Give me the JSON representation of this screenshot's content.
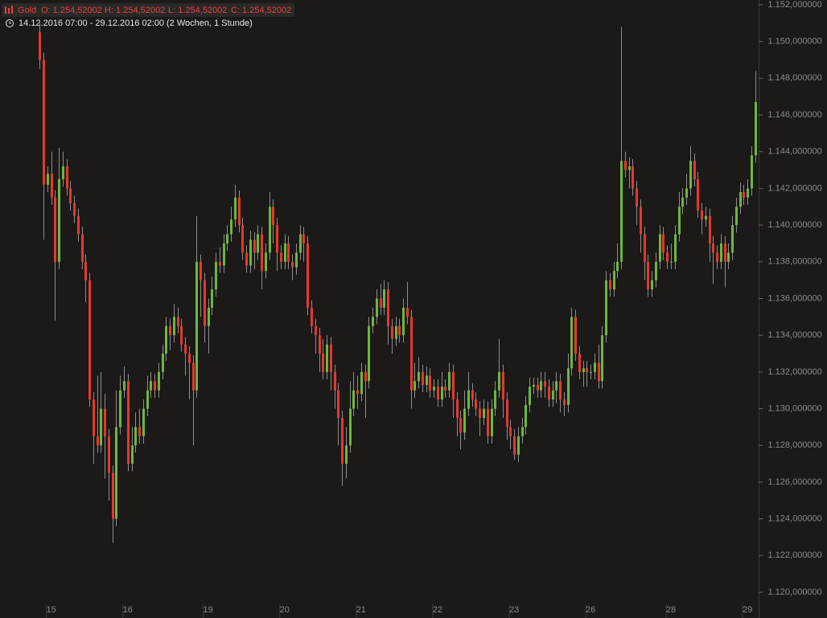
{
  "chart_data": {
    "type": "candlestick",
    "title": "Gold",
    "quote": {
      "open": "O: 1.254,52002",
      "high": "H: 1.254,52002",
      "low": "L: 1.254,52002",
      "close": "C: 1.254,52002"
    },
    "period": "14.12.2016 07:00 - 29.12.2016 02:00",
    "span": "(2 Wochen, 1 Stunde)",
    "up_color": "#6cb83a",
    "down_color": "#e5382e",
    "wick_color": "#8c8c8c",
    "categories": [
      null,
      null,
      null,
      "15",
      null,
      null,
      null,
      null,
      null,
      null,
      null,
      null,
      null,
      null,
      null,
      null,
      null,
      null,
      null,
      null,
      null,
      null,
      null,
      "16",
      null,
      null,
      null,
      null,
      null,
      null,
      null,
      null,
      null,
      null,
      null,
      null,
      null,
      null,
      null,
      null,
      null,
      null,
      null,
      null,
      "19",
      null,
      null,
      null,
      null,
      null,
      null,
      null,
      null,
      null,
      null,
      null,
      null,
      null,
      null,
      null,
      null,
      null,
      null,
      null,
      "20",
      null,
      null,
      null,
      null,
      null,
      null,
      null,
      null,
      null,
      null,
      null,
      null,
      null,
      null,
      null,
      null,
      null,
      null,
      null,
      "21",
      null,
      null,
      null,
      null,
      null,
      null,
      null,
      null,
      null,
      null,
      null,
      null,
      null,
      null,
      null,
      null,
      null,
      null,
      null,
      "22",
      null,
      null,
      null,
      null,
      null,
      null,
      null,
      null,
      null,
      null,
      null,
      null,
      null,
      null,
      null,
      null,
      null,
      null,
      null,
      "23",
      null,
      null,
      null,
      null,
      null,
      null,
      null,
      null,
      null,
      null,
      null,
      null,
      null,
      null,
      null,
      null,
      null,
      null,
      null,
      "26",
      null,
      null,
      null,
      null,
      null,
      null,
      null,
      null,
      null,
      null,
      null,
      null,
      null,
      null,
      null,
      null,
      null,
      null,
      null,
      null,
      "28",
      null,
      null,
      null,
      null,
      null,
      null,
      null,
      null,
      null,
      null,
      null,
      null,
      null,
      null,
      null,
      null,
      null,
      null,
      null,
      "29",
      null,
      null
    ],
    "open": [
      1150.5,
      1149.0,
      1142.2,
      1142.8,
      1141.5,
      1138.0,
      1142.5,
      1143.2,
      1142.0,
      1141.2,
      1140.5,
      1139.5,
      1138.0,
      1137.0,
      1130.5,
      1128.5,
      1128.0,
      1130.0,
      1128.5,
      1126.5,
      1124.0,
      1129.0,
      1131.0,
      1131.5,
      1127.0,
      1128.0,
      1129.0,
      1128.5,
      1130.0,
      1131.0,
      1131.5,
      1131.0,
      1132.0,
      1133.0,
      1134.5,
      1134.0,
      1135.0,
      1134.5,
      1133.5,
      1133.0,
      1132.5,
      1131.0,
      1138.0,
      1137.0,
      1134.5,
      1135.5,
      1136.5,
      1138.0,
      1137.8,
      1139.0,
      1139.5,
      1140.3,
      1141.5,
      1140.0,
      1138.5,
      1137.8,
      1139.2,
      1138.5,
      1139.5,
      1137.5,
      1138.5,
      1141.0,
      1140.0,
      1138.5,
      1138.0,
      1139.0,
      1138.0,
      1137.7,
      1138.5,
      1139.5,
      1139.0,
      1135.5,
      1134.5,
      1134.0,
      1133.0,
      1132.0,
      1133.5,
      1132.0,
      1131.0,
      1129.5,
      1127.0,
      1128.0,
      1130.0,
      1131.0,
      1130.8,
      1132.0,
      1131.5,
      1134.5,
      1135.0,
      1136.0,
      1135.5,
      1136.5,
      1134.5,
      1133.8,
      1134.5,
      1134.0,
      1135.5,
      1135.0,
      1131.0,
      1131.5,
      1132.0,
      1131.3,
      1131.8,
      1131.0,
      1131.2,
      1130.5,
      1131.2,
      1131.0,
      1132.0,
      1130.5,
      1129.5,
      1128.7,
      1130.0,
      1131.0,
      1130.5,
      1130.0,
      1129.5,
      1130.0,
      1128.5,
      1130.0,
      1131.0,
      1132.0,
      1130.5,
      1129.0,
      1128.5,
      1127.5,
      1128.5,
      1129.0,
      1130.2,
      1131.2,
      1131.3,
      1131.0,
      1131.5,
      1131.2,
      1130.5,
      1131.0,
      1131.5,
      1130.5,
      1130.2,
      1132.2,
      1135.0,
      1133.0,
      1132.0,
      1132.2,
      1132.0,
      1132.0,
      1132.5,
      1131.5,
      1134.0,
      1137.0,
      1136.5,
      1137.5,
      1138.0,
      1143.5,
      1143.0,
      1143.2,
      1142.0,
      1141.0,
      1139.5,
      1138.0,
      1136.5,
      1137.0,
      1138.0,
      1139.5,
      1138.5,
      1138.0,
      1138.0,
      1139.5,
      1141.0,
      1141.5,
      1142.0,
      1143.5,
      1142.5,
      1140.8,
      1140.3,
      1140.5,
      1139.0,
      1138.5,
      1138.0,
      1139.0,
      1138.0,
      1138.5,
      1140.0,
      1141.0,
      1141.8,
      1141.5,
      1142.0,
      1143.8
    ],
    "high": [
      1151.0,
      1149.4,
      1143.2,
      1144.0,
      1141.9,
      1144.2,
      1144.0,
      1143.6,
      1142.4,
      1141.6,
      1140.9,
      1139.9,
      1138.4,
      1137.4,
      1130.9,
      1131.8,
      1132.0,
      1130.8,
      1128.9,
      1126.9,
      1131.0,
      1131.8,
      1132.3,
      1131.9,
      1129.0,
      1129.8,
      1130.0,
      1130.5,
      1131.8,
      1132.0,
      1131.9,
      1132.5,
      1133.5,
      1135.0,
      1134.9,
      1135.7,
      1135.5,
      1134.9,
      1133.9,
      1133.4,
      1132.9,
      1140.5,
      1138.4,
      1137.4,
      1136.0,
      1137.2,
      1138.5,
      1138.8,
      1139.5,
      1140.0,
      1141.0,
      1142.2,
      1141.9,
      1140.4,
      1138.9,
      1139.7,
      1139.6,
      1140.0,
      1139.9,
      1139.0,
      1141.8,
      1141.4,
      1140.4,
      1138.9,
      1139.5,
      1139.4,
      1138.4,
      1139.0,
      1140.0,
      1139.9,
      1139.4,
      1135.9,
      1134.9,
      1134.4,
      1133.8,
      1134.0,
      1133.9,
      1132.4,
      1131.4,
      1129.9,
      1129.0,
      1131.5,
      1132.0,
      1131.8,
      1132.5,
      1132.4,
      1135.0,
      1135.5,
      1136.5,
      1136.8,
      1137.0,
      1136.9,
      1134.9,
      1135.0,
      1134.9,
      1136.0,
      1136.9,
      1135.4,
      1132.5,
      1132.8,
      1132.4,
      1132.3,
      1132.2,
      1131.6,
      1131.6,
      1132.0,
      1131.6,
      1132.5,
      1132.4,
      1130.9,
      1129.9,
      1131.0,
      1132.0,
      1131.4,
      1130.9,
      1130.4,
      1130.5,
      1130.4,
      1130.5,
      1131.5,
      1133.8,
      1132.4,
      1130.9,
      1129.4,
      1128.9,
      1129.0,
      1129.5,
      1130.7,
      1131.7,
      1131.7,
      1131.7,
      1132.0,
      1132.0,
      1131.6,
      1131.5,
      1132.0,
      1131.9,
      1130.9,
      1133.0,
      1135.5,
      1135.4,
      1133.4,
      1132.6,
      1132.6,
      1132.4,
      1133.0,
      1133.5,
      1134.5,
      1137.5,
      1137.4,
      1138.0,
      1139.0,
      1150.8,
      1144.0,
      1143.7,
      1143.6,
      1142.4,
      1141.4,
      1139.9,
      1138.4,
      1137.5,
      1138.5,
      1140.0,
      1139.9,
      1138.9,
      1139.0,
      1140.0,
      1141.8,
      1142.0,
      1142.8,
      1144.3,
      1143.9,
      1142.9,
      1141.2,
      1141.0,
      1140.9,
      1139.4,
      1138.9,
      1139.5,
      1139.4,
      1139.0,
      1140.5,
      1141.5,
      1142.3,
      1142.2,
      1142.5,
      1144.3,
      1148.4
    ],
    "low": [
      1148.5,
      1139.2,
      1141.8,
      1141.1,
      1134.8,
      1137.6,
      1142.1,
      1141.6,
      1140.8,
      1140.1,
      1139.1,
      1137.6,
      1135.8,
      1130.1,
      1127.0,
      1127.6,
      1127.6,
      1126.2,
      1125.0,
      1122.7,
      1123.6,
      1128.6,
      1130.6,
      1126.6,
      1126.6,
      1127.6,
      1128.1,
      1128.1,
      1129.6,
      1130.6,
      1130.6,
      1130.6,
      1131.6,
      1132.6,
      1133.2,
      1133.6,
      1134.1,
      1133.1,
      1131.8,
      1130.5,
      1128.0,
      1130.6,
      1135.0,
      1133.6,
      1133.0,
      1135.1,
      1136.1,
      1137.4,
      1137.4,
      1138.6,
      1139.1,
      1139.9,
      1139.6,
      1138.1,
      1137.4,
      1137.4,
      1137.6,
      1138.1,
      1136.5,
      1137.1,
      1138.1,
      1139.0,
      1137.5,
      1137.6,
      1137.6,
      1137.6,
      1137.0,
      1137.3,
      1138.1,
      1138.0,
      1135.1,
      1134.1,
      1133.0,
      1132.0,
      1131.6,
      1131.6,
      1131.0,
      1130.0,
      1128.0,
      1125.8,
      1126.2,
      1127.6,
      1129.6,
      1130.0,
      1130.4,
      1129.5,
      1131.1,
      1134.1,
      1134.6,
      1135.1,
      1135.1,
      1133.5,
      1133.0,
      1133.4,
      1133.6,
      1133.6,
      1134.6,
      1130.0,
      1130.6,
      1131.1,
      1130.9,
      1130.9,
      1130.6,
      1130.6,
      1130.1,
      1130.1,
      1130.6,
      1130.6,
      1129.5,
      1128.5,
      1127.8,
      1128.3,
      1129.6,
      1130.1,
      1129.6,
      1128.5,
      1129.1,
      1128.1,
      1128.1,
      1129.6,
      1130.6,
      1129.5,
      1128.3,
      1127.8,
      1127.2,
      1127.1,
      1128.1,
      1128.6,
      1129.8,
      1130.8,
      1130.6,
      1130.6,
      1130.6,
      1130.1,
      1130.1,
      1130.3,
      1129.8,
      1129.6,
      1129.8,
      1131.8,
      1132.6,
      1131.6,
      1131.2,
      1131.2,
      1131.6,
      1131.6,
      1131.1,
      1131.1,
      1133.6,
      1136.1,
      1136.1,
      1137.1,
      1137.6,
      1142.6,
      1142.0,
      1141.6,
      1140.0,
      1138.5,
      1137.0,
      1136.1,
      1136.1,
      1136.6,
      1137.6,
      1138.1,
      1137.6,
      1137.6,
      1137.6,
      1139.1,
      1140.6,
      1141.1,
      1141.6,
      1142.1,
      1140.4,
      1139.5,
      1139.9,
      1138.0,
      1136.8,
      1137.6,
      1137.6,
      1136.6,
      1137.6,
      1138.1,
      1139.6,
      1140.6,
      1141.1,
      1141.1,
      1141.6,
      1143.4
    ],
    "close": [
      1149.0,
      1142.2,
      1142.8,
      1141.5,
      1138.0,
      1142.5,
      1143.2,
      1142.0,
      1141.2,
      1140.5,
      1139.5,
      1138.0,
      1137.0,
      1130.5,
      1128.5,
      1128.0,
      1130.0,
      1128.5,
      1126.5,
      1124.0,
      1129.0,
      1131.0,
      1131.5,
      1127.0,
      1128.0,
      1129.0,
      1128.5,
      1130.0,
      1131.0,
      1131.5,
      1131.0,
      1132.0,
      1133.0,
      1134.5,
      1134.0,
      1135.0,
      1134.5,
      1133.5,
      1133.0,
      1132.5,
      1131.0,
      1138.0,
      1137.0,
      1134.5,
      1135.5,
      1136.5,
      1138.0,
      1137.8,
      1139.0,
      1139.5,
      1140.3,
      1141.5,
      1140.0,
      1138.5,
      1137.8,
      1139.2,
      1138.5,
      1139.5,
      1137.5,
      1138.5,
      1141.0,
      1140.0,
      1138.5,
      1138.0,
      1139.0,
      1138.0,
      1137.7,
      1138.5,
      1139.5,
      1139.0,
      1135.5,
      1134.5,
      1134.0,
      1133.0,
      1132.0,
      1133.5,
      1132.0,
      1131.0,
      1129.5,
      1127.0,
      1128.0,
      1130.0,
      1131.0,
      1130.8,
      1132.0,
      1131.5,
      1134.5,
      1135.0,
      1136.0,
      1135.5,
      1136.5,
      1134.5,
      1133.8,
      1134.5,
      1134.0,
      1135.5,
      1135.0,
      1131.0,
      1131.5,
      1132.0,
      1131.3,
      1131.8,
      1131.0,
      1131.2,
      1130.5,
      1131.2,
      1131.0,
      1132.0,
      1130.5,
      1129.5,
      1128.7,
      1130.0,
      1131.0,
      1130.5,
      1130.0,
      1129.5,
      1130.0,
      1128.5,
      1130.0,
      1131.0,
      1132.0,
      1130.5,
      1129.0,
      1128.5,
      1127.5,
      1128.5,
      1129.0,
      1130.2,
      1131.2,
      1131.3,
      1131.0,
      1131.5,
      1131.2,
      1130.5,
      1131.0,
      1131.5,
      1130.5,
      1130.2,
      1132.2,
      1135.0,
      1133.0,
      1132.0,
      1132.2,
      1132.0,
      1132.0,
      1132.5,
      1131.5,
      1134.0,
      1137.0,
      1136.5,
      1137.5,
      1138.0,
      1143.5,
      1143.0,
      1143.2,
      1142.0,
      1141.0,
      1139.5,
      1138.0,
      1136.5,
      1137.0,
      1138.0,
      1139.5,
      1138.5,
      1138.0,
      1138.0,
      1139.5,
      1141.0,
      1141.5,
      1142.0,
      1143.5,
      1142.5,
      1140.8,
      1140.3,
      1140.5,
      1139.0,
      1138.5,
      1138.0,
      1139.0,
      1138.0,
      1138.5,
      1140.0,
      1141.0,
      1141.8,
      1141.5,
      1142.0,
      1143.8,
      1146.7
    ],
    "ylim": [
      1119.52,
      1152.26
    ],
    "yticks": [
      {
        "value": 1120,
        "label": "1.120,000000"
      },
      {
        "value": 1122,
        "label": "1.122,000000"
      },
      {
        "value": 1124,
        "label": "1.124,000000"
      },
      {
        "value": 1126,
        "label": "1.126,000000"
      },
      {
        "value": 1128,
        "label": "1.128,000000"
      },
      {
        "value": 1130,
        "label": "1.130,000000"
      },
      {
        "value": 1132,
        "label": "1.132,000000"
      },
      {
        "value": 1134,
        "label": "1.134,000000"
      },
      {
        "value": 1136,
        "label": "1.136,000000"
      },
      {
        "value": 1138,
        "label": "1.138,000000"
      },
      {
        "value": 1140,
        "label": "1.140,000000"
      },
      {
        "value": 1142,
        "label": "1.142,000000"
      },
      {
        "value": 1144,
        "label": "1.144,000000"
      },
      {
        "value": 1146,
        "label": "1.146,000000"
      },
      {
        "value": 1148,
        "label": "1.148,000000"
      },
      {
        "value": 1150,
        "label": "1.150,000000"
      },
      {
        "value": 1152,
        "label": "1.152,000000"
      }
    ],
    "y_axis_side": "right"
  }
}
